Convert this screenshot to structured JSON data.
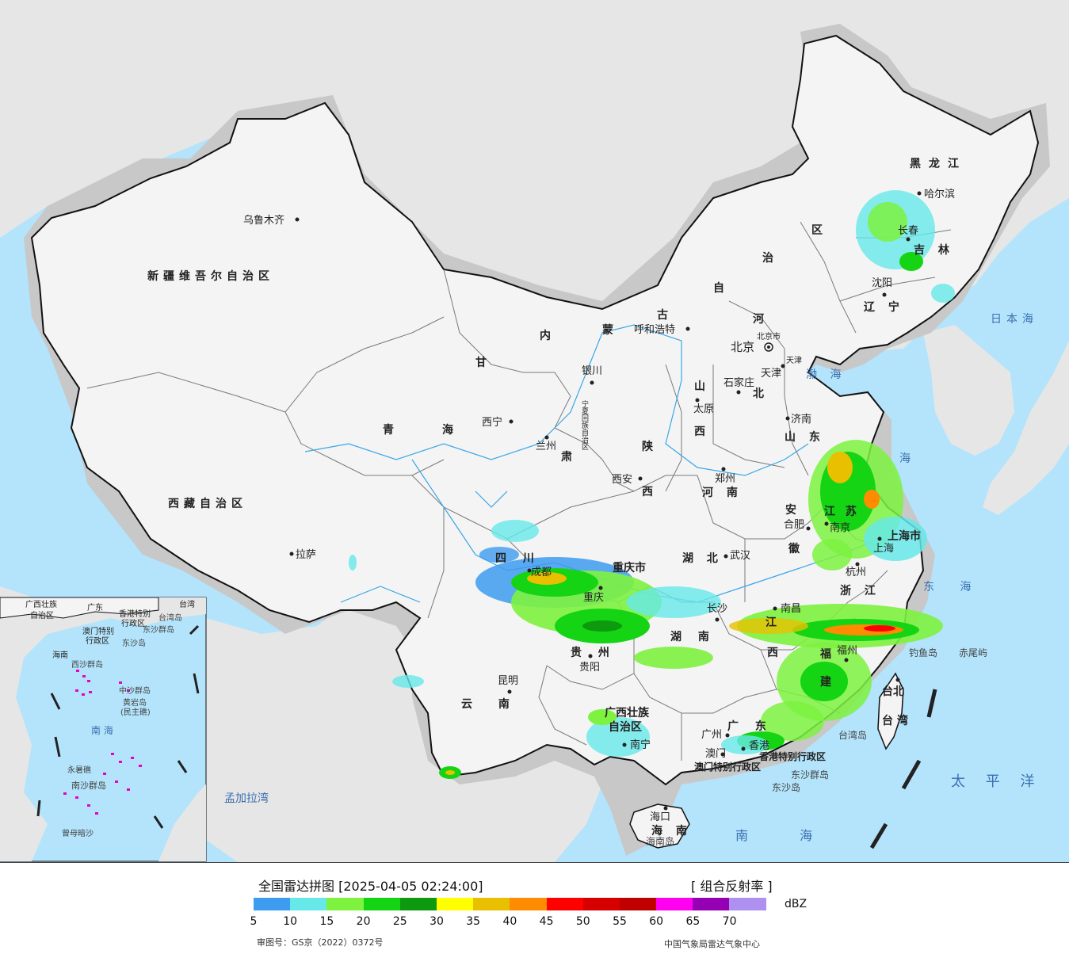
{
  "map": {
    "colors": {
      "sea": "#b3e4fb",
      "foreign_land": "#e6e6e6",
      "china_land": "#f4f4f4",
      "border": "#111111",
      "province_border": "#7a7a7a",
      "halo": "#c8c8c8"
    },
    "province_labels": [
      {
        "id": "xinjiang",
        "text": "新疆维吾尔自治区"
      },
      {
        "id": "xizang",
        "text": "西藏自治区"
      },
      {
        "id": "qinghai-1",
        "text": "青"
      },
      {
        "id": "qinghai-2",
        "text": "海"
      },
      {
        "id": "gansu-1",
        "text": "甘"
      },
      {
        "id": "gansu-2",
        "text": "肃"
      },
      {
        "id": "neimenggu-1",
        "text": "内"
      },
      {
        "id": "neimenggu-2",
        "text": "蒙"
      },
      {
        "id": "neimenggu-3",
        "text": "古"
      },
      {
        "id": "neimenggu-4",
        "text": "自"
      },
      {
        "id": "neimenggu-5",
        "text": "治"
      },
      {
        "id": "neimenggu-6",
        "text": "区"
      },
      {
        "id": "heilongjiang",
        "text": "黑龙江"
      },
      {
        "id": "jilin",
        "text": "吉 林"
      },
      {
        "id": "liaoning",
        "text": "辽 宁"
      },
      {
        "id": "hebei-1",
        "text": "河"
      },
      {
        "id": "hebei-2",
        "text": "北"
      },
      {
        "id": "shanxi-1",
        "text": "山"
      },
      {
        "id": "shanxi-2",
        "text": "西"
      },
      {
        "id": "shandong",
        "text": "山 东"
      },
      {
        "id": "shaanxi-1",
        "text": "陕"
      },
      {
        "id": "shaanxi-2",
        "text": "西"
      },
      {
        "id": "henan",
        "text": "河 南"
      },
      {
        "id": "ningxia",
        "text": "宁夏回族自治区"
      },
      {
        "id": "sichuan",
        "text": "四 川"
      },
      {
        "id": "chongqing",
        "text": "重庆市"
      },
      {
        "id": "hubei",
        "text": "湖 北"
      },
      {
        "id": "hunan",
        "text": "湖 南"
      },
      {
        "id": "anhui-1",
        "text": "安"
      },
      {
        "id": "anhui-2",
        "text": "徽"
      },
      {
        "id": "jiangsu",
        "text": "江 苏"
      },
      {
        "id": "shanghai",
        "text": "上海市"
      },
      {
        "id": "zhejiang",
        "text": "浙 江"
      },
      {
        "id": "jiangxi-1",
        "text": "江"
      },
      {
        "id": "jiangxi-2",
        "text": "西"
      },
      {
        "id": "fujian-1",
        "text": "福"
      },
      {
        "id": "fujian-2",
        "text": "建"
      },
      {
        "id": "guizhou",
        "text": "贵 州"
      },
      {
        "id": "yunnan",
        "text": "云 南"
      },
      {
        "id": "guangxi-1",
        "text": "广西壮族"
      },
      {
        "id": "guangxi-2",
        "text": "自治区"
      },
      {
        "id": "guangdong",
        "text": "广 东"
      },
      {
        "id": "taiwan-1",
        "text": "台北"
      },
      {
        "id": "taiwan-2",
        "text": "台 湾"
      },
      {
        "id": "hainan",
        "text": "海 南"
      },
      {
        "id": "hk-sar",
        "text": "香港特别行政区"
      },
      {
        "id": "macau-sar",
        "text": "澳门特别行政区"
      }
    ],
    "cities": [
      {
        "id": "urumqi",
        "text": "乌鲁木齐"
      },
      {
        "id": "lhasa",
        "text": "拉萨"
      },
      {
        "id": "xining",
        "text": "西宁"
      },
      {
        "id": "lanzhou",
        "text": "兰州"
      },
      {
        "id": "yinchuan",
        "text": "银川"
      },
      {
        "id": "hohhot",
        "text": "呼和浩特"
      },
      {
        "id": "beijing",
        "text": "北京"
      },
      {
        "id": "tianjin",
        "text": "天津"
      },
      {
        "id": "shijiazhuang",
        "text": "石家庄"
      },
      {
        "id": "taiyuan",
        "text": "太原"
      },
      {
        "id": "jinan",
        "text": "济南"
      },
      {
        "id": "zhengzhou",
        "text": "郑州"
      },
      {
        "id": "xian",
        "text": "西安"
      },
      {
        "id": "harbin",
        "text": "哈尔滨"
      },
      {
        "id": "changchun",
        "text": "长春"
      },
      {
        "id": "shenyang",
        "text": "沈阳"
      },
      {
        "id": "chengdu",
        "text": "成都"
      },
      {
        "id": "chongqing-city",
        "text": "重庆"
      },
      {
        "id": "wuhan",
        "text": "武汉"
      },
      {
        "id": "changsha",
        "text": "长沙"
      },
      {
        "id": "hefei",
        "text": "合肥"
      },
      {
        "id": "nanjing",
        "text": "南京"
      },
      {
        "id": "shanghai-city",
        "text": "上海"
      },
      {
        "id": "hangzhou",
        "text": "杭州"
      },
      {
        "id": "nanchang",
        "text": "南昌"
      },
      {
        "id": "fuzhou",
        "text": "福州"
      },
      {
        "id": "guiyang",
        "text": "贵阳"
      },
      {
        "id": "kunming",
        "text": "昆明"
      },
      {
        "id": "nanning",
        "text": "南宁"
      },
      {
        "id": "guangzhou",
        "text": "广州"
      },
      {
        "id": "hongkong",
        "text": "香港"
      },
      {
        "id": "macau",
        "text": "澳门"
      },
      {
        "id": "haikou",
        "text": "海口"
      }
    ],
    "seas_and_islands": [
      {
        "id": "bohai",
        "text": "渤 海"
      },
      {
        "id": "huanghai",
        "text": "海"
      },
      {
        "id": "donghai",
        "text": "东 海"
      },
      {
        "id": "riben-hai",
        "text": "日本海"
      },
      {
        "id": "taipingyang",
        "text": "太 平 洋"
      },
      {
        "id": "nanhai",
        "text": "南 海"
      },
      {
        "id": "mengjiala",
        "text": "孟加拉湾"
      },
      {
        "id": "diaoyu",
        "text": "钓鱼岛"
      },
      {
        "id": "chiwei",
        "text": "赤尾屿"
      },
      {
        "id": "taiwan-dao",
        "text": "台湾岛"
      },
      {
        "id": "dongsha-qd",
        "text": "东沙群岛"
      },
      {
        "id": "dongsha-dao",
        "text": "东沙岛"
      },
      {
        "id": "hainan-dao",
        "text": "海南岛"
      },
      {
        "id": "beijing-shi",
        "text": "北京市"
      },
      {
        "id": "tianjin-shi",
        "text": "天津"
      }
    ],
    "inset_labels": [
      {
        "id": "inset-guangxi",
        "text": "广西壮族"
      },
      {
        "id": "inset-guangxi2",
        "text": "自治区"
      },
      {
        "id": "inset-guangdong",
        "text": "广东"
      },
      {
        "id": "inset-hk",
        "text": "香港特别"
      },
      {
        "id": "inset-hk2",
        "text": "行政区"
      },
      {
        "id": "inset-macau",
        "text": "澳门特别"
      },
      {
        "id": "inset-macau2",
        "text": "行政区"
      },
      {
        "id": "inset-taiwan",
        "text": "台湾"
      },
      {
        "id": "inset-taiwan-dao",
        "text": "台湾岛"
      },
      {
        "id": "inset-dongsha",
        "text": "东沙群岛"
      },
      {
        "id": "inset-dongsha-dao",
        "text": "东沙岛"
      },
      {
        "id": "inset-hainan",
        "text": "海南"
      },
      {
        "id": "inset-xisha",
        "text": "西沙群岛"
      },
      {
        "id": "inset-zhongsha",
        "text": "中沙群岛"
      },
      {
        "id": "inset-huangyan",
        "text": "黄岩岛"
      },
      {
        "id": "inset-minzhu",
        "text": "(民主礁)"
      },
      {
        "id": "inset-nanhai",
        "text": "南 海"
      },
      {
        "id": "inset-nansha",
        "text": "南沙群岛"
      },
      {
        "id": "inset-yongshu",
        "text": "永暑礁"
      },
      {
        "id": "inset-zengmu",
        "text": "曾母暗沙"
      }
    ]
  },
  "legend": {
    "title": "全国雷达拼图 [2025-04-05 02:24:00]",
    "product": "[ 组合反射率 ]",
    "unit": "dBZ",
    "scale": [
      {
        "value": "5",
        "color": "#3d9bf0"
      },
      {
        "value": "10",
        "color": "#66e8e8"
      },
      {
        "value": "15",
        "color": "#7df23f"
      },
      {
        "value": "20",
        "color": "#14d414"
      },
      {
        "value": "25",
        "color": "#0e9a0e"
      },
      {
        "value": "30",
        "color": "#ffff00"
      },
      {
        "value": "35",
        "color": "#e8c000"
      },
      {
        "value": "40",
        "color": "#ff8c00"
      },
      {
        "value": "45",
        "color": "#ff0000"
      },
      {
        "value": "50",
        "color": "#d60000"
      },
      {
        "value": "55",
        "color": "#c00000"
      },
      {
        "value": "60",
        "color": "#ff00f0"
      },
      {
        "value": "65",
        "color": "#9600b4"
      },
      {
        "value": "70",
        "color": "#ad90f0"
      }
    ],
    "approval": "审图号：GS京（2022）0372号",
    "source": "中国气象局雷达气象中心"
  }
}
